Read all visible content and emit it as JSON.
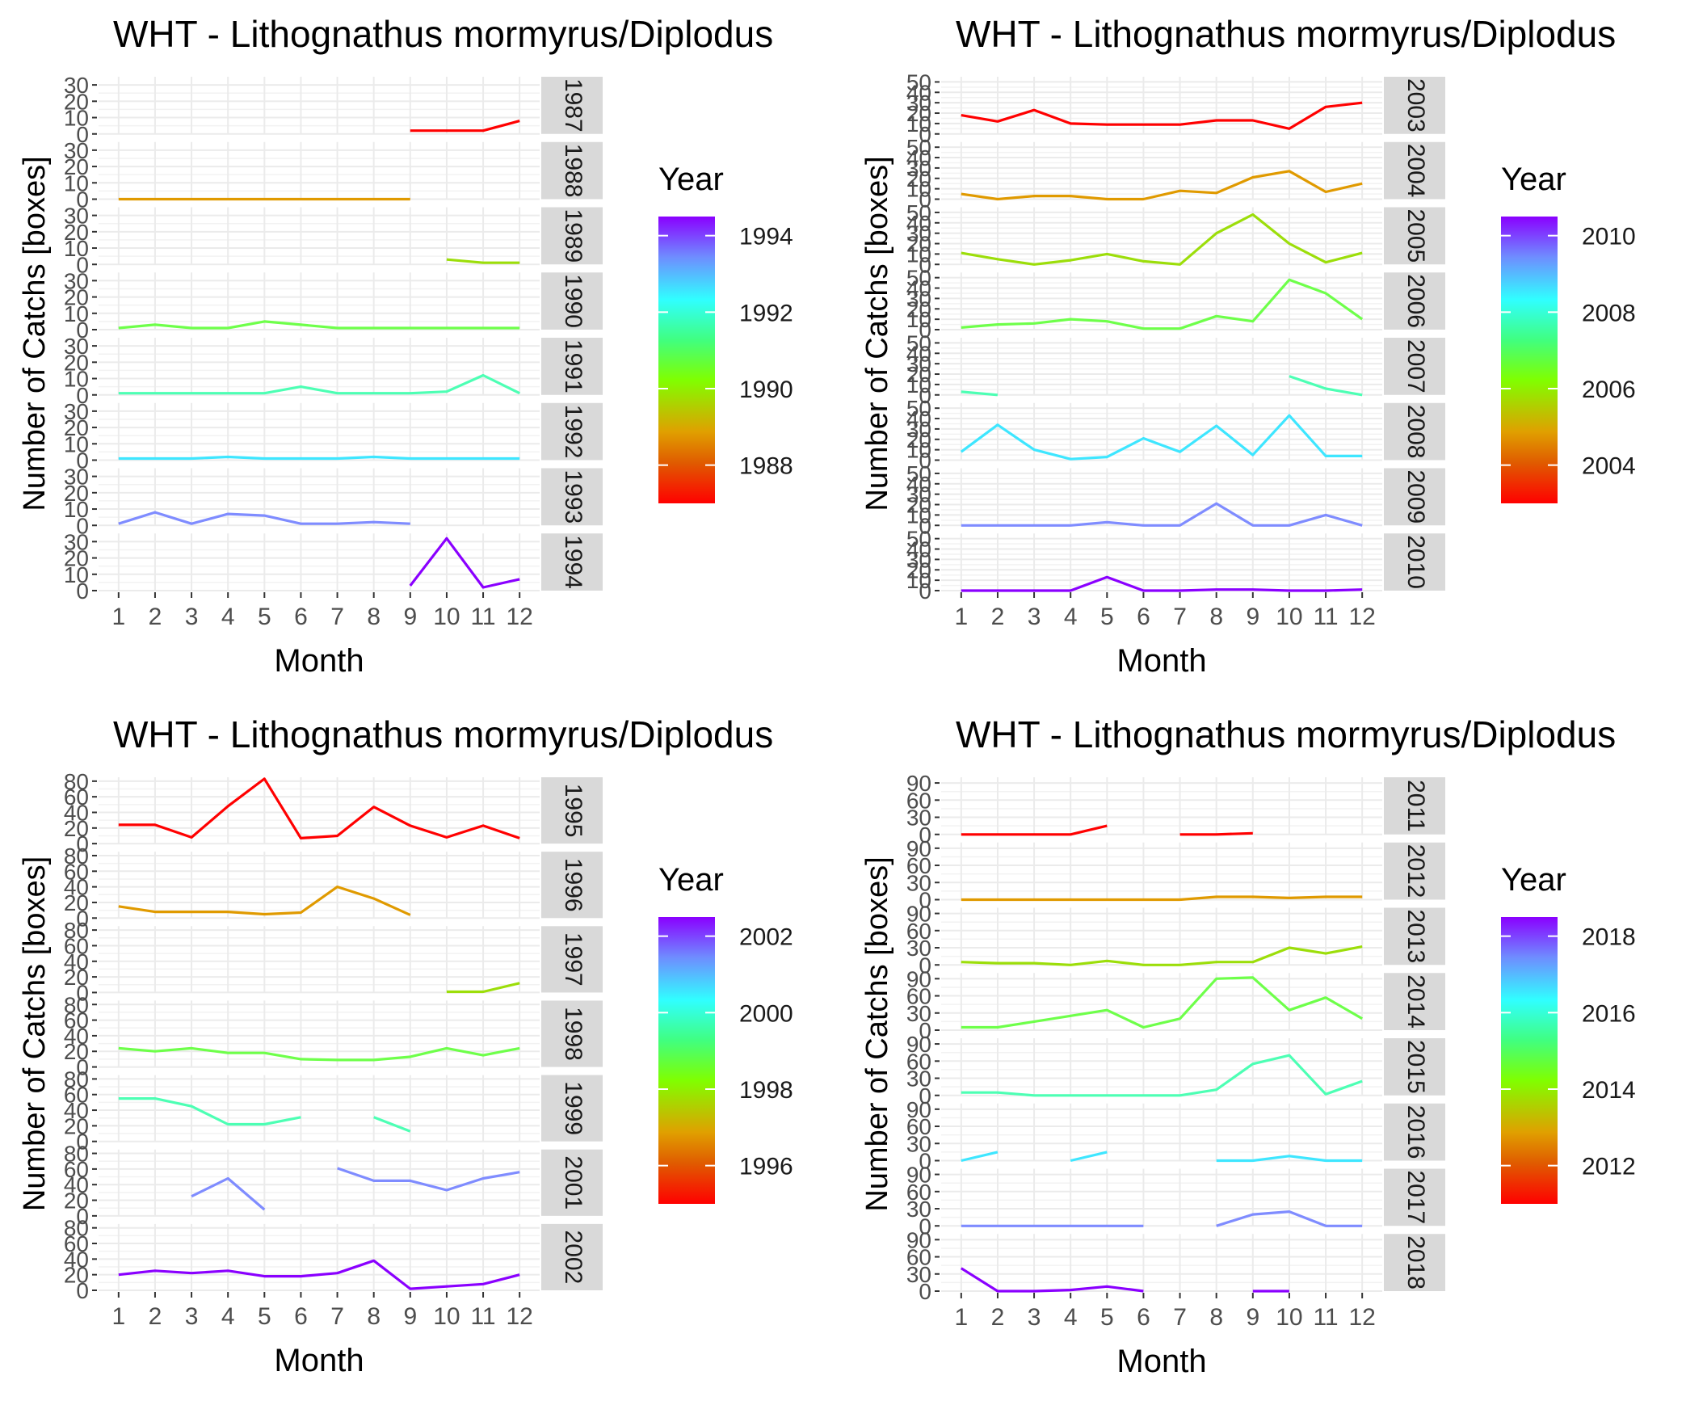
{
  "chart_data": [
    {
      "type": "line",
      "title": "WHT - Lithognathus mormyrus/Diplodus",
      "xlabel": "Month",
      "ylabel": "Number of Catchs [boxes]",
      "x": [
        1,
        2,
        3,
        4,
        5,
        6,
        7,
        8,
        9,
        10,
        11,
        12
      ],
      "xticks": [
        "1",
        "2",
        "3",
        "4",
        "5",
        "6",
        "7",
        "8",
        "9",
        "10",
        "11",
        "12"
      ],
      "ylim": [
        0,
        35
      ],
      "yticks": [
        "0",
        "10",
        "20",
        "30"
      ],
      "legend": {
        "title": "Year",
        "labels": [
          "1988",
          "1990",
          "1992",
          "1994"
        ],
        "min": 1987,
        "max": 1994.5,
        "values": [
          1988,
          1990,
          1992,
          1994
        ]
      },
      "panels": [
        {
          "label": "1987",
          "color": "#ff0000",
          "values": [
            null,
            null,
            null,
            null,
            null,
            null,
            null,
            null,
            2,
            2,
            2,
            8
          ]
        },
        {
          "label": "1988",
          "color": "#e09a00",
          "values": [
            0,
            0,
            0,
            0,
            0,
            0,
            0,
            0,
            0,
            null,
            null,
            null
          ]
        },
        {
          "label": "1989",
          "color": "#9cde0a",
          "values": [
            null,
            null,
            null,
            null,
            null,
            null,
            null,
            null,
            null,
            3,
            1,
            1
          ]
        },
        {
          "label": "1990",
          "color": "#6eff4a",
          "values": [
            1,
            3,
            1,
            1,
            5,
            3,
            1,
            1,
            1,
            1,
            1,
            1
          ]
        },
        {
          "label": "1991",
          "color": "#4dffb4",
          "values": [
            1,
            1,
            1,
            1,
            1,
            5,
            1,
            1,
            1,
            2,
            12,
            1
          ]
        },
        {
          "label": "1992",
          "color": "#3ee6ff",
          "values": [
            1,
            1,
            1,
            2,
            1,
            1,
            1,
            2,
            1,
            1,
            1,
            1
          ]
        },
        {
          "label": "1993",
          "color": "#7f8cff",
          "values": [
            1,
            8,
            1,
            7,
            6,
            1,
            1,
            2,
            1,
            null,
            null,
            null
          ]
        },
        {
          "label": "1994",
          "color": "#8a00ff",
          "values": [
            null,
            null,
            null,
            null,
            null,
            null,
            null,
            null,
            3,
            32,
            2,
            7
          ]
        }
      ]
    },
    {
      "type": "line",
      "title": "WHT - Lithognathus mormyrus/Diplodus",
      "xlabel": "Month",
      "ylabel": "Number of Catchs [boxes]",
      "x": [
        1,
        2,
        3,
        4,
        5,
        6,
        7,
        8,
        9,
        10,
        11,
        12
      ],
      "xticks": [
        "1",
        "2",
        "3",
        "4",
        "5",
        "6",
        "7",
        "8",
        "9",
        "10",
        "11",
        "12"
      ],
      "ylim": [
        0,
        55
      ],
      "yticks": [
        "0",
        "10",
        "20",
        "30",
        "40",
        "50"
      ],
      "legend": {
        "title": "Year",
        "labels": [
          "2004",
          "2006",
          "2008",
          "2010"
        ],
        "min": 2003,
        "max": 2010.5,
        "values": [
          2004,
          2006,
          2008,
          2010
        ]
      },
      "panels": [
        {
          "label": "2003",
          "color": "#ff0000",
          "values": [
            18,
            12,
            23,
            10,
            9,
            9,
            9,
            13,
            13,
            5,
            26,
            30
          ]
        },
        {
          "label": "2004",
          "color": "#e09a00",
          "values": [
            5,
            0,
            3,
            3,
            0,
            0,
            8,
            6,
            21,
            27,
            7,
            15
          ]
        },
        {
          "label": "2005",
          "color": "#9cde0a",
          "values": [
            11,
            5,
            0,
            4,
            10,
            3,
            0,
            30,
            48,
            20,
            2,
            11
          ]
        },
        {
          "label": "2006",
          "color": "#6eff4a",
          "values": [
            2,
            5,
            6,
            10,
            8,
            1,
            1,
            13,
            8,
            48,
            35,
            10
          ]
        },
        {
          "label": "2007",
          "color": "#4dffb4",
          "values": [
            3,
            0,
            null,
            null,
            null,
            null,
            null,
            null,
            null,
            18,
            6,
            0
          ]
        },
        {
          "label": "2008",
          "color": "#3ee6ff",
          "values": [
            8,
            34,
            10,
            1,
            3,
            21,
            8,
            33,
            5,
            43,
            4,
            4
          ]
        },
        {
          "label": "2009",
          "color": "#7f8cff",
          "values": [
            0,
            0,
            0,
            0,
            3,
            0,
            0,
            21,
            0,
            0,
            10,
            0
          ]
        },
        {
          "label": "2010",
          "color": "#8a00ff",
          "values": [
            0,
            0,
            0,
            0,
            13,
            0,
            0,
            1,
            1,
            0,
            0,
            1
          ]
        }
      ]
    },
    {
      "type": "line",
      "title": "WHT - Lithognathus mormyrus/Diplodus",
      "xlabel": "Month",
      "ylabel": "Number of Catchs [boxes]",
      "x": [
        1,
        2,
        3,
        4,
        5,
        6,
        7,
        8,
        9,
        10,
        11,
        12
      ],
      "xticks": [
        "1",
        "2",
        "3",
        "4",
        "5",
        "6",
        "7",
        "8",
        "9",
        "10",
        "11",
        "12"
      ],
      "ylim": [
        0,
        85
      ],
      "yticks": [
        "0",
        "20",
        "40",
        "60",
        "80"
      ],
      "legend": {
        "title": "Year",
        "labels": [
          "1996",
          "1998",
          "2000",
          "2002"
        ],
        "min": 1995,
        "max": 2002.5,
        "values": [
          1996,
          1998,
          2000,
          2002
        ]
      },
      "panels": [
        {
          "label": "1995",
          "color": "#ff0000",
          "values": [
            24,
            24,
            8,
            48,
            83,
            7,
            10,
            47,
            23,
            8,
            23,
            7
          ]
        },
        {
          "label": "1996",
          "color": "#e09a00",
          "values": [
            15,
            8,
            8,
            8,
            5,
            7,
            40,
            25,
            4,
            null,
            null,
            null
          ]
        },
        {
          "label": "1997",
          "color": "#9cde0a",
          "values": [
            null,
            null,
            null,
            null,
            null,
            null,
            null,
            null,
            null,
            1,
            1,
            12
          ]
        },
        {
          "label": "1998",
          "color": "#6eff4a",
          "values": [
            24,
            20,
            24,
            18,
            18,
            10,
            9,
            9,
            13,
            24,
            15,
            24
          ]
        },
        {
          "label": "1999",
          "color": "#4dffb4",
          "values": [
            55,
            55,
            45,
            22,
            22,
            31,
            null,
            31,
            13,
            null,
            null,
            null
          ]
        },
        {
          "label": "2001",
          "color": "#7f8cff",
          "values": [
            null,
            null,
            25,
            48,
            8,
            null,
            61,
            45,
            45,
            33,
            48,
            56
          ]
        },
        {
          "label": "2002",
          "color": "#8a00ff",
          "values": [
            20,
            25,
            22,
            25,
            18,
            18,
            22,
            38,
            2,
            5,
            8,
            20
          ]
        }
      ]
    },
    {
      "type": "line",
      "title": "WHT - Lithognathus mormyrus/Diplodus",
      "xlabel": "Month",
      "ylabel": "Number of Catchs [boxes]",
      "x": [
        1,
        2,
        3,
        4,
        5,
        6,
        7,
        8,
        9,
        10,
        11,
        12
      ],
      "xticks": [
        "1",
        "2",
        "3",
        "4",
        "5",
        "6",
        "7",
        "8",
        "9",
        "10",
        "11",
        "12"
      ],
      "ylim": [
        0,
        100
      ],
      "yticks": [
        "0",
        "30",
        "60",
        "90"
      ],
      "legend": {
        "title": "Year",
        "labels": [
          "2012",
          "2014",
          "2016",
          "2018"
        ],
        "min": 2011,
        "max": 2018.5,
        "values": [
          2012,
          2014,
          2016,
          2018
        ]
      },
      "panels": [
        {
          "label": "2011",
          "color": "#ff0000",
          "values": [
            0,
            0,
            0,
            0,
            15,
            null,
            0,
            0,
            2,
            null,
            null,
            null
          ]
        },
        {
          "label": "2012",
          "color": "#e09a00",
          "values": [
            0,
            0,
            0,
            0,
            0,
            0,
            0,
            5,
            5,
            3,
            5,
            5
          ]
        },
        {
          "label": "2013",
          "color": "#9cde0a",
          "values": [
            5,
            3,
            3,
            0,
            7,
            0,
            0,
            5,
            5,
            30,
            20,
            32
          ]
        },
        {
          "label": "2014",
          "color": "#6eff4a",
          "values": [
            5,
            5,
            15,
            25,
            35,
            5,
            20,
            90,
            92,
            35,
            57,
            20
          ]
        },
        {
          "label": "2015",
          "color": "#4dffb4",
          "values": [
            5,
            5,
            0,
            0,
            0,
            0,
            0,
            10,
            55,
            70,
            2,
            25
          ]
        },
        {
          "label": "2016",
          "color": "#3ee6ff",
          "values": [
            0,
            15,
            null,
            0,
            15,
            null,
            null,
            0,
            0,
            8,
            0,
            0
          ]
        },
        {
          "label": "2017",
          "color": "#7f8cff",
          "values": [
            0,
            0,
            0,
            0,
            0,
            0,
            null,
            0,
            20,
            25,
            0,
            0
          ]
        },
        {
          "label": "2018",
          "color": "#8a00ff",
          "values": [
            40,
            0,
            0,
            2,
            8,
            0,
            null,
            null,
            0,
            0,
            null,
            null
          ]
        }
      ]
    }
  ]
}
